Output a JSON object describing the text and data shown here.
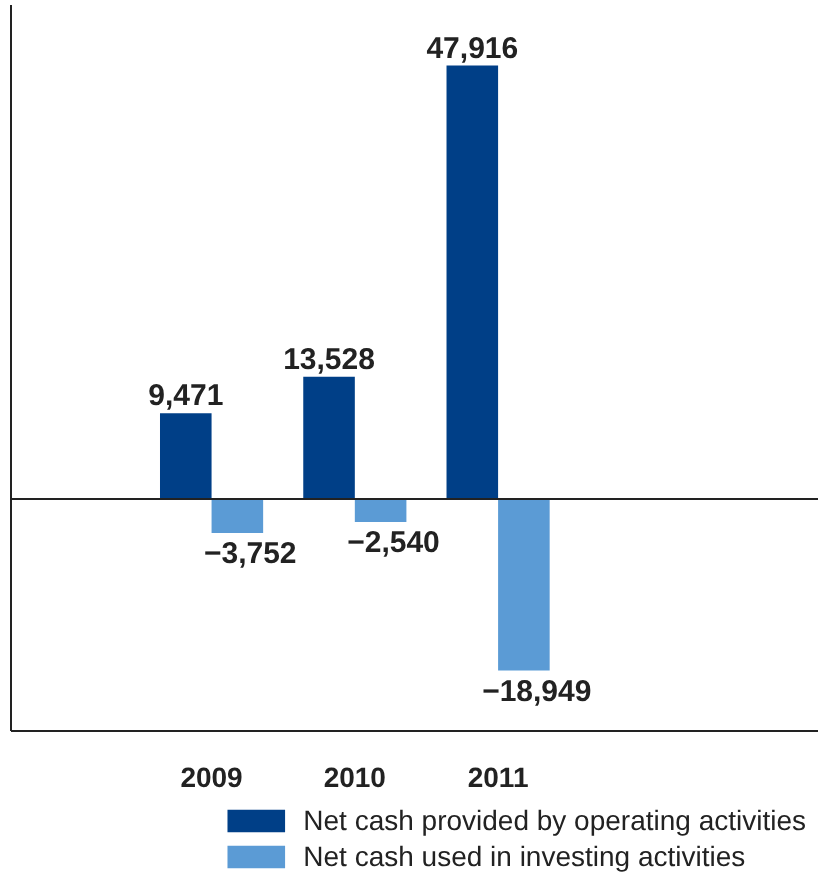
{
  "chart_data": {
    "type": "bar",
    "categories": [
      "2009",
      "2010",
      "2011"
    ],
    "series": [
      {
        "name": "Net cash provided by operating activities",
        "color": "#003f87",
        "values": [
          9471,
          13528,
          47916
        ],
        "value_labels": [
          "9,471",
          "13,528",
          "47,916"
        ]
      },
      {
        "name": "Net cash used in investing activities",
        "color": "#5b9bd5",
        "values": [
          -3752,
          -2540,
          -18949
        ],
        "value_labels": [
          "−3,752",
          "−2,540",
          "−18,949"
        ]
      }
    ],
    "tick_labels": "x",
    "legend": "bottom"
  }
}
